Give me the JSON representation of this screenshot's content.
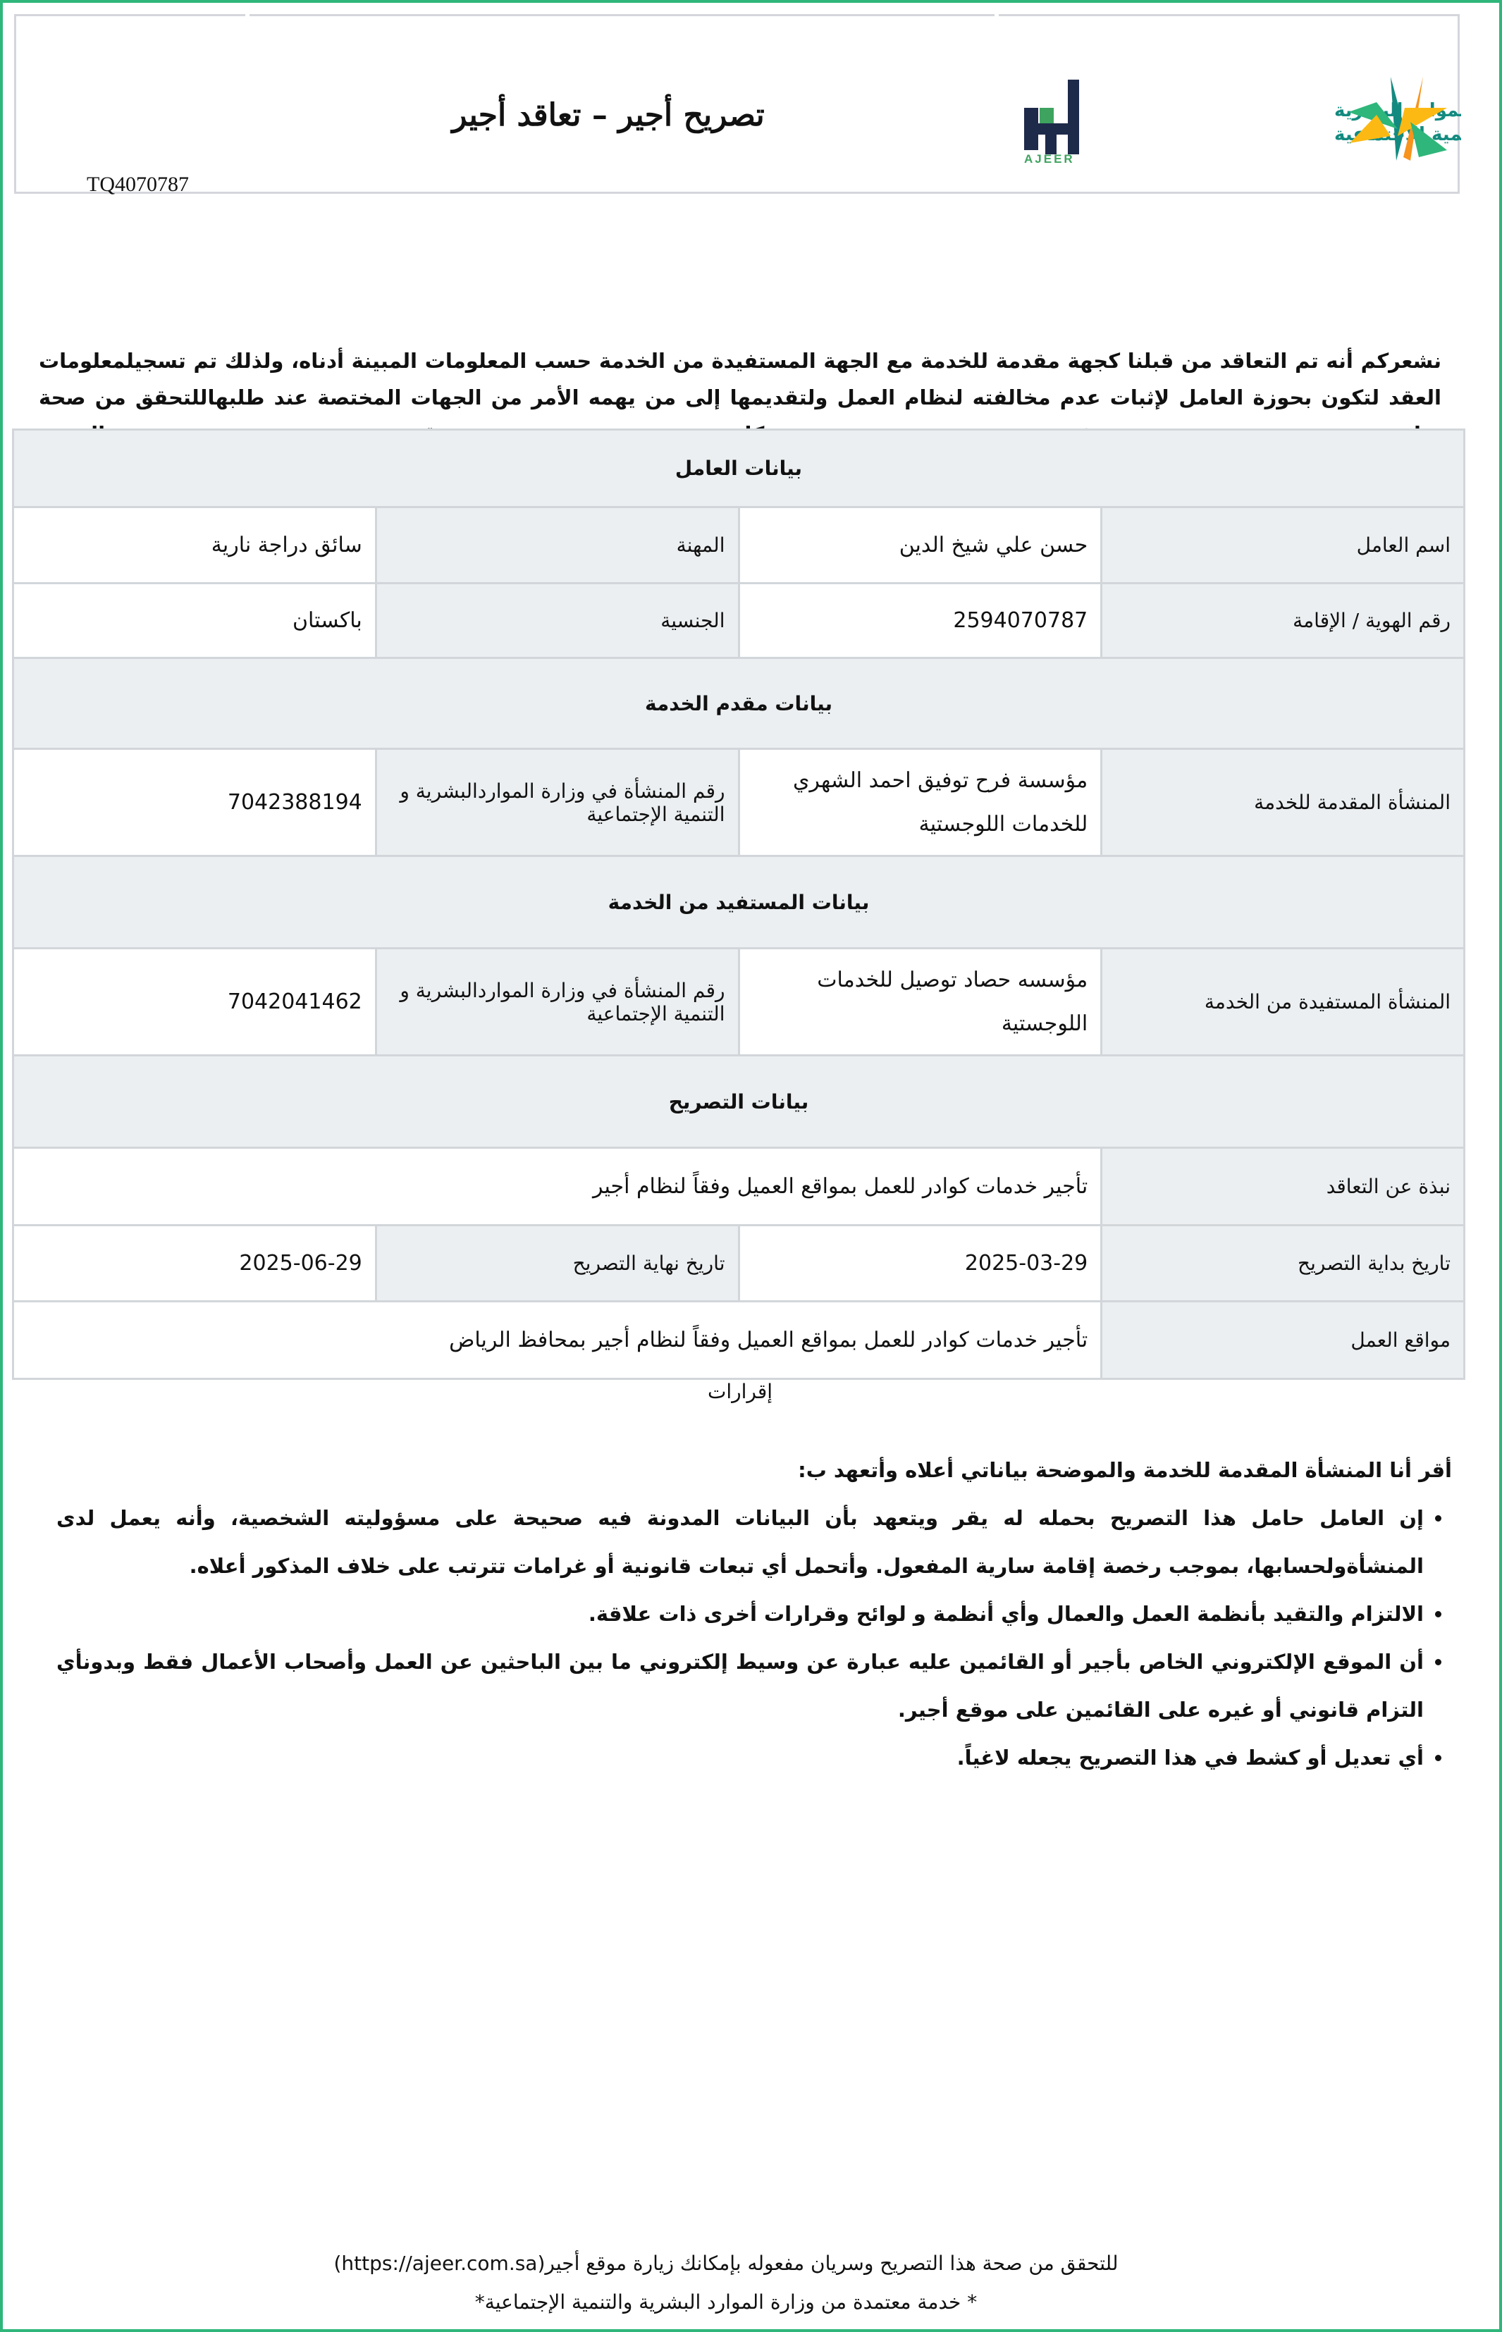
{
  "header": {
    "title": "تصريح أجير –  تعاقد أجير",
    "reference": "TQ4070787",
    "logos": {
      "ministry": "الموارد البشرية والتنمية الاجتماعية",
      "ajeer_ar": "أجير",
      "ajeer_en": "AJEER"
    },
    "colors": {
      "frame": "#2fb67a",
      "ajeer_navy": "#1e2a4a",
      "ajeer_green": "#3ea35f",
      "ministry_teal": "#138a80",
      "ministry_orange": "#f7941d",
      "ministry_yellow": "#fdb913"
    }
  },
  "intro": "نشعركم أنه تم التعاقد من قبلنا كجهة مقدمة للخدمة مع الجهة المستفيدة من الخدمة حسب المعلومات المبينة أدناه، ولذلك تم تسجيلمعلومات العقد لتكون بحوزة العامل لإثبات عدم مخالفته لنظام العمل ولتقديمها إلى من يهمه الأمر من الجهات المختصة عند طلبهاللتحقق من صحة تواجده في مكان تقديم الخدمة",
  "worker": {
    "section": "بيانات العامل",
    "name_label": "اسم العامل",
    "name": "حسن علي شيخ الدين",
    "profession_label": "المهنة",
    "profession": "سائق دراجة نارية",
    "id_label": "رقم الهوية / الإقامة",
    "id": "2594070787",
    "nationality_label": "الجنسية",
    "nationality": "باكستان"
  },
  "provider": {
    "section": "بيانات مقدم الخدمة",
    "org_label": "المنشأة المقدمة للخدمة",
    "org": "مؤسسة فرح توفيق احمد الشهري للخدمات اللوجستية",
    "num_label": "رقم المنشأة في وزارة المواردالبشرية و التنمية الإجتماعية",
    "num": "7042388194"
  },
  "beneficiary": {
    "section": "بيانات المستفيد من الخدمة",
    "org_label": "المنشأة المستفيدة من الخدمة",
    "org": "مؤسسه حصاد توصيل للخدمات اللوجستية",
    "num_label": "رقم المنشأة في وزارة المواردالبشرية و التنمية الإجتماعية",
    "num": "7042041462"
  },
  "permit": {
    "section": "بيانات التصريح",
    "about_label": "نبذة عن التعاقد",
    "about": "تأجير خدمات كوادر للعمل بمواقع العميل وفقاً لنظام أجير",
    "start_label": "تاريخ بداية التصريح",
    "start": "2025-03-29",
    "end_label": "تاريخ نهاية التصريح",
    "end": "2025-06-29",
    "sites_label": "مواقع العمل",
    "sites": "تأجير خدمات كوادر للعمل بمواقع العميل وفقاً لنظام أجير بمحافظ الرياض"
  },
  "acknowledgements": {
    "title": "إقرارات",
    "intro": "أقر أنا المنشأة المقدمة للخدمة والموضحة بياناتي أعلاه وأتعهد ب:",
    "items": [
      "إن العامل حامل هذا التصريح بحمله له يقر ويتعهد بأن البيانات المدونة فيه صحيحة على مسؤوليته الشخصية، وأنه يعمل لدى المنشأةولحسابها، بموجب رخصة إقامة سارية المفعول. وأتحمل أي تبعات قانونية أو غرامات تترتب على خلاف المذكور أعلاه.",
      "الالتزام والتقيد بأنظمة العمل والعمال وأي أنظمة و لوائح وقرارات أخرى ذات علاقة.",
      "أن الموقع الإلكتروني الخاص بأجير أو القائمين عليه عبارة عن وسيط إلكتروني ما بين الباحثين عن العمل وأصحاب الأعمال فقط وبدونأي التزام قانوني أو غيره على القائمين على موقع أجير.",
      "أي تعديل أو كشط في هذا التصريح يجعله لاغياً."
    ]
  },
  "footer": {
    "verify": "للتحقق من صحة هذا التصريح وسريان مفعوله بإمكانك زيارة موقع أجير(https://ajeer.com.sa)",
    "note": "* خدمة معتمدة من وزارة الموارد البشرية والتنمية الإجتماعية*"
  }
}
